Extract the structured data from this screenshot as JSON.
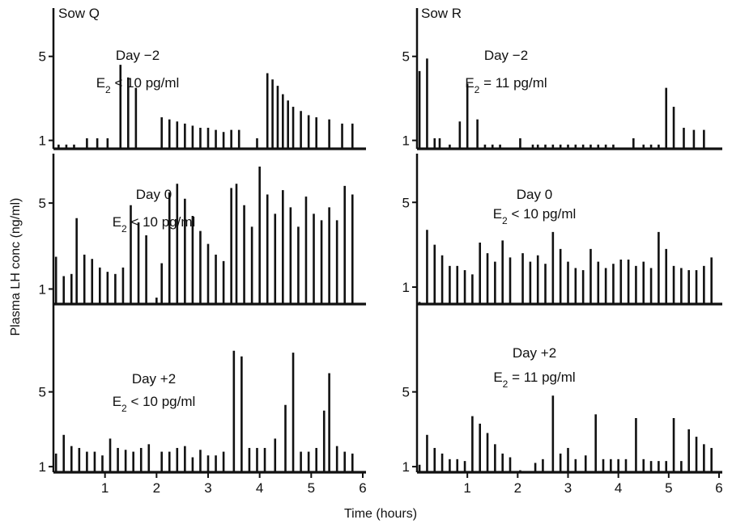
{
  "figure": {
    "ylabel": "Plasma LH conc (ng/ml)",
    "xlabel": "Time (hours)"
  },
  "columns": [
    {
      "title": "Sow Q"
    },
    {
      "title": "Sow R"
    }
  ],
  "chart_data": [
    {
      "type": "bar",
      "panel": "Sow Q, Day -2",
      "column": 0,
      "row": 0,
      "day_label": "Day −2",
      "e2_sub": "2",
      "e2_rel": "<",
      "e2_value": "10 pg/ml",
      "xlim": [
        0,
        6
      ],
      "ylim": [
        0.6,
        7.3
      ],
      "yticks": [
        1,
        5
      ],
      "xticks": [],
      "x": [
        0.1,
        0.25,
        0.4,
        0.65,
        0.85,
        1.05,
        1.3,
        1.45,
        1.6,
        2.1,
        2.25,
        2.4,
        2.55,
        2.7,
        2.85,
        3.0,
        3.15,
        3.3,
        3.45,
        3.6,
        3.95,
        4.15,
        4.25,
        4.35,
        4.45,
        4.55,
        4.65,
        4.8,
        4.95,
        5.1,
        5.35,
        5.6,
        5.8
      ],
      "y": [
        0.8,
        0.8,
        0.8,
        1.1,
        1.1,
        1.1,
        4.6,
        4.0,
        3.5,
        2.1,
        2.0,
        1.9,
        1.8,
        1.7,
        1.6,
        1.6,
        1.5,
        1.4,
        1.5,
        1.5,
        1.1,
        4.2,
        3.9,
        3.6,
        3.2,
        2.9,
        2.6,
        2.4,
        2.2,
        2.1,
        2.0,
        1.8,
        1.8
      ]
    },
    {
      "type": "bar",
      "panel": "Sow Q, Day 0",
      "column": 0,
      "row": 1,
      "day_label": "Day 0",
      "e2_sub": "2",
      "e2_rel": "<",
      "e2_value": "10 pg/ml",
      "xlim": [
        0,
        6
      ],
      "ylim": [
        0.3,
        7.3
      ],
      "yticks": [
        1,
        5
      ],
      "xticks": [],
      "x": [
        0.05,
        0.2,
        0.35,
        0.45,
        0.6,
        0.75,
        0.9,
        1.05,
        1.2,
        1.35,
        1.5,
        1.65,
        1.8,
        2.0,
        2.1,
        2.25,
        2.4,
        2.55,
        2.7,
        2.85,
        3.0,
        3.15,
        3.3,
        3.45,
        3.55,
        3.7,
        3.85,
        4.0,
        4.15,
        4.3,
        4.45,
        4.6,
        4.75,
        4.9,
        5.05,
        5.2,
        5.35,
        5.5,
        5.65,
        5.8
      ],
      "y": [
        2.5,
        1.6,
        1.7,
        4.3,
        2.6,
        2.4,
        2.0,
        1.8,
        1.7,
        2.0,
        4.9,
        4.1,
        3.5,
        0.6,
        2.2,
        5.5,
        5.9,
        5.2,
        4.4,
        3.7,
        3.1,
        2.6,
        2.3,
        5.7,
        5.9,
        4.9,
        3.9,
        6.7,
        5.4,
        4.5,
        5.6,
        4.8,
        3.9,
        5.3,
        4.5,
        4.2,
        4.8,
        4.2,
        5.8,
        5.4
      ]
    },
    {
      "type": "bar",
      "panel": "Sow Q, Day +2",
      "column": 0,
      "row": 2,
      "day_label": "Day +2",
      "e2_sub": "2",
      "e2_rel": "<",
      "e2_value": "10 pg/ml",
      "xlim": [
        0,
        6
      ],
      "ylim": [
        0.7,
        9.7
      ],
      "yticks": [
        1,
        5
      ],
      "xticks": [
        1,
        2,
        3,
        4,
        5,
        6
      ],
      "x": [
        0.05,
        0.2,
        0.35,
        0.5,
        0.65,
        0.8,
        0.95,
        1.1,
        1.25,
        1.4,
        1.55,
        1.7,
        1.85,
        2.1,
        2.25,
        2.4,
        2.55,
        2.7,
        2.85,
        3.0,
        3.15,
        3.3,
        3.5,
        3.65,
        3.8,
        3.95,
        4.1,
        4.3,
        4.5,
        4.65,
        4.8,
        4.95,
        5.1,
        5.25,
        5.35,
        5.5,
        5.65,
        5.8
      ],
      "y": [
        1.7,
        2.7,
        2.1,
        2.0,
        1.8,
        1.8,
        1.6,
        2.5,
        2.0,
        1.9,
        1.8,
        2.0,
        2.2,
        1.8,
        1.8,
        2.0,
        2.1,
        1.5,
        1.9,
        1.6,
        1.6,
        1.8,
        7.2,
        6.9,
        2.0,
        2.0,
        2.0,
        2.5,
        4.3,
        7.1,
        1.8,
        1.8,
        2.0,
        4.0,
        6.0,
        2.1,
        1.8,
        1.7
      ]
    },
    {
      "type": "bar",
      "panel": "Sow R, Day -2",
      "column": 1,
      "row": 0,
      "day_label": "Day −2",
      "e2_sub": "2",
      "e2_rel": "=",
      "e2_value": "11 pg/ml",
      "xlim": [
        0,
        6
      ],
      "ylim": [
        0.6,
        7.3
      ],
      "yticks": [
        1,
        5
      ],
      "xticks": [],
      "x": [
        0.05,
        0.2,
        0.35,
        0.45,
        0.65,
        0.85,
        1.0,
        1.2,
        1.35,
        1.5,
        1.65,
        2.05,
        2.3,
        2.4,
        2.55,
        2.7,
        2.85,
        3.0,
        3.15,
        3.3,
        3.45,
        3.6,
        3.75,
        3.9,
        4.3,
        4.5,
        4.65,
        4.8,
        4.95,
        5.1,
        5.3,
        5.5,
        5.7
      ],
      "y": [
        4.3,
        4.9,
        1.1,
        1.1,
        0.8,
        1.9,
        3.7,
        2.0,
        0.8,
        0.8,
        0.8,
        1.1,
        0.8,
        0.8,
        0.8,
        0.8,
        0.8,
        0.8,
        0.8,
        0.8,
        0.8,
        0.8,
        0.8,
        0.8,
        1.1,
        0.8,
        0.8,
        0.8,
        3.5,
        2.6,
        1.6,
        1.5,
        1.5
      ]
    },
    {
      "type": "bar",
      "panel": "Sow R, Day 0",
      "column": 1,
      "row": 1,
      "day_label": "Day 0",
      "e2_sub": "2",
      "e2_rel": "<",
      "e2_value": "10 pg/ml",
      "xlim": [
        0,
        6
      ],
      "ylim": [
        0.2,
        7.3
      ],
      "yticks": [
        1,
        5
      ],
      "xticks": [],
      "x": [
        0.05,
        0.2,
        0.35,
        0.5,
        0.65,
        0.8,
        0.95,
        1.1,
        1.25,
        1.4,
        1.55,
        1.7,
        1.85,
        2.1,
        2.25,
        2.4,
        2.55,
        2.7,
        2.85,
        3.0,
        3.15,
        3.3,
        3.45,
        3.6,
        3.75,
        3.9,
        4.05,
        4.2,
        4.35,
        4.5,
        4.65,
        4.8,
        4.95,
        5.1,
        5.25,
        5.4,
        5.55,
        5.7,
        5.85
      ],
      "y": [
        0.3,
        3.7,
        3.0,
        2.5,
        2.0,
        2.0,
        1.8,
        1.6,
        3.1,
        2.6,
        2.2,
        3.2,
        2.4,
        2.6,
        2.2,
        2.5,
        2.1,
        3.6,
        2.8,
        2.2,
        1.9,
        1.8,
        2.8,
        2.2,
        1.9,
        2.1,
        2.3,
        2.3,
        2.0,
        2.2,
        1.9,
        3.6,
        2.8,
        2.0,
        1.9,
        1.8,
        1.8,
        2.0,
        2.4
      ]
    },
    {
      "type": "bar",
      "panel": "Sow R, Day +2",
      "column": 1,
      "row": 2,
      "day_label": "Day +2",
      "e2_sub": "2",
      "e2_rel": "=",
      "e2_value": "11 pg/ml",
      "xlim": [
        0,
        6
      ],
      "ylim": [
        0.7,
        9.7
      ],
      "yticks": [
        1,
        5
      ],
      "xticks": [
        1,
        2,
        3,
        4,
        5,
        6
      ],
      "x": [
        0.05,
        0.2,
        0.35,
        0.5,
        0.65,
        0.8,
        0.95,
        1.1,
        1.25,
        1.4,
        1.55,
        1.7,
        1.85,
        2.05,
        2.35,
        2.5,
        2.7,
        2.85,
        3.0,
        3.15,
        3.35,
        3.55,
        3.7,
        3.85,
        4.0,
        4.15,
        4.35,
        4.5,
        4.65,
        4.8,
        4.95,
        5.1,
        5.25,
        5.4,
        5.55,
        5.7,
        5.85
      ],
      "y": [
        1.1,
        2.7,
        2.0,
        1.7,
        1.4,
        1.4,
        1.3,
        3.7,
        3.3,
        2.8,
        2.2,
        1.7,
        1.5,
        0.8,
        1.2,
        1.4,
        4.8,
        1.7,
        2.0,
        1.4,
        1.6,
        3.8,
        1.4,
        1.4,
        1.4,
        1.4,
        3.6,
        1.4,
        1.3,
        1.3,
        1.3,
        3.6,
        1.3,
        3.0,
        2.6,
        2.2,
        2.0
      ]
    }
  ]
}
